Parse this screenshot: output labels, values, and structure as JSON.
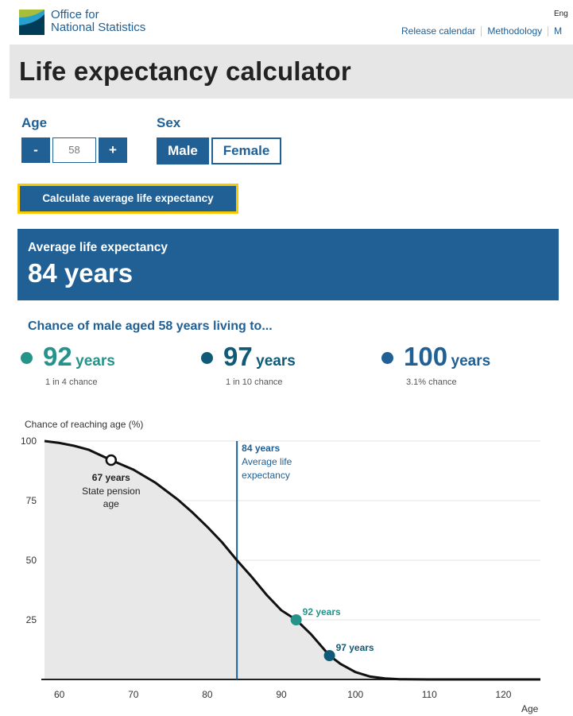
{
  "header": {
    "org_line1": "Office for",
    "org_line2": "National Statistics",
    "language": "Eng",
    "links": [
      "Release calendar",
      "Methodology",
      "M"
    ]
  },
  "page_title": "Life expectancy calculator",
  "age": {
    "label": "Age",
    "value": "58",
    "decrement": "-",
    "increment": "+"
  },
  "sex": {
    "label": "Sex",
    "options": [
      "Male",
      "Female"
    ],
    "selected": "Male"
  },
  "calculate_button": "Calculate average life expectancy",
  "result": {
    "label": "Average life expectancy",
    "value": "84 years"
  },
  "chances": {
    "heading": "Chance of male aged 58 years living to...",
    "items": [
      {
        "age": "92",
        "unit": "years",
        "chance": "1 in 4 chance",
        "color": "#26938b"
      },
      {
        "age": "97",
        "unit": "years",
        "chance": "1 in 10 chance",
        "color": "#0f5b77"
      },
      {
        "age": "100",
        "unit": "years",
        "chance": "3.1% chance",
        "color": "#206095"
      }
    ]
  },
  "colors": {
    "ons_blue": "#206095",
    "teal": "#26938b",
    "dark_teal": "#0f5b77",
    "focus_yellow": "#fbc900"
  },
  "chart_data": {
    "type": "area",
    "ylabel": "Chance of reaching age (%)",
    "xlabel": "Age",
    "xlim": [
      58,
      125
    ],
    "ylim": [
      0,
      100
    ],
    "xticks": [
      60,
      70,
      80,
      90,
      100,
      110,
      120
    ],
    "yticks": [
      25,
      50,
      75,
      100
    ],
    "series": [
      {
        "name": "Chance of reaching age",
        "x": [
          58,
          60,
          62,
          64,
          67,
          70,
          73,
          76,
          78,
          80,
          82,
          84,
          86,
          88,
          90,
          92,
          94,
          96.5,
          98,
          100,
          102,
          104,
          106,
          110,
          115,
          120,
          125
        ],
        "y": [
          100,
          99.2,
          98,
          96.3,
          92,
          88,
          82.5,
          75.5,
          70,
          64,
          57.5,
          50,
          43,
          35.5,
          29,
          25,
          19,
          10,
          6.5,
          3.1,
          1.2,
          0.4,
          0.1,
          0,
          0,
          0,
          0
        ]
      }
    ],
    "annotations": [
      {
        "x": 67,
        "y": 92,
        "style": "open-circle",
        "title": "67 years",
        "text": [
          "State pension",
          "age"
        ]
      },
      {
        "x": 84,
        "style": "vertical-line",
        "title": "84 years",
        "text": [
          "Average life",
          "expectancy"
        ]
      },
      {
        "x": 92,
        "y": 25,
        "style": "dot",
        "title": "92 years",
        "color": "#26938b"
      },
      {
        "x": 96.5,
        "y": 10,
        "style": "dot",
        "title": "97 years",
        "color": "#0f5b77"
      }
    ]
  }
}
